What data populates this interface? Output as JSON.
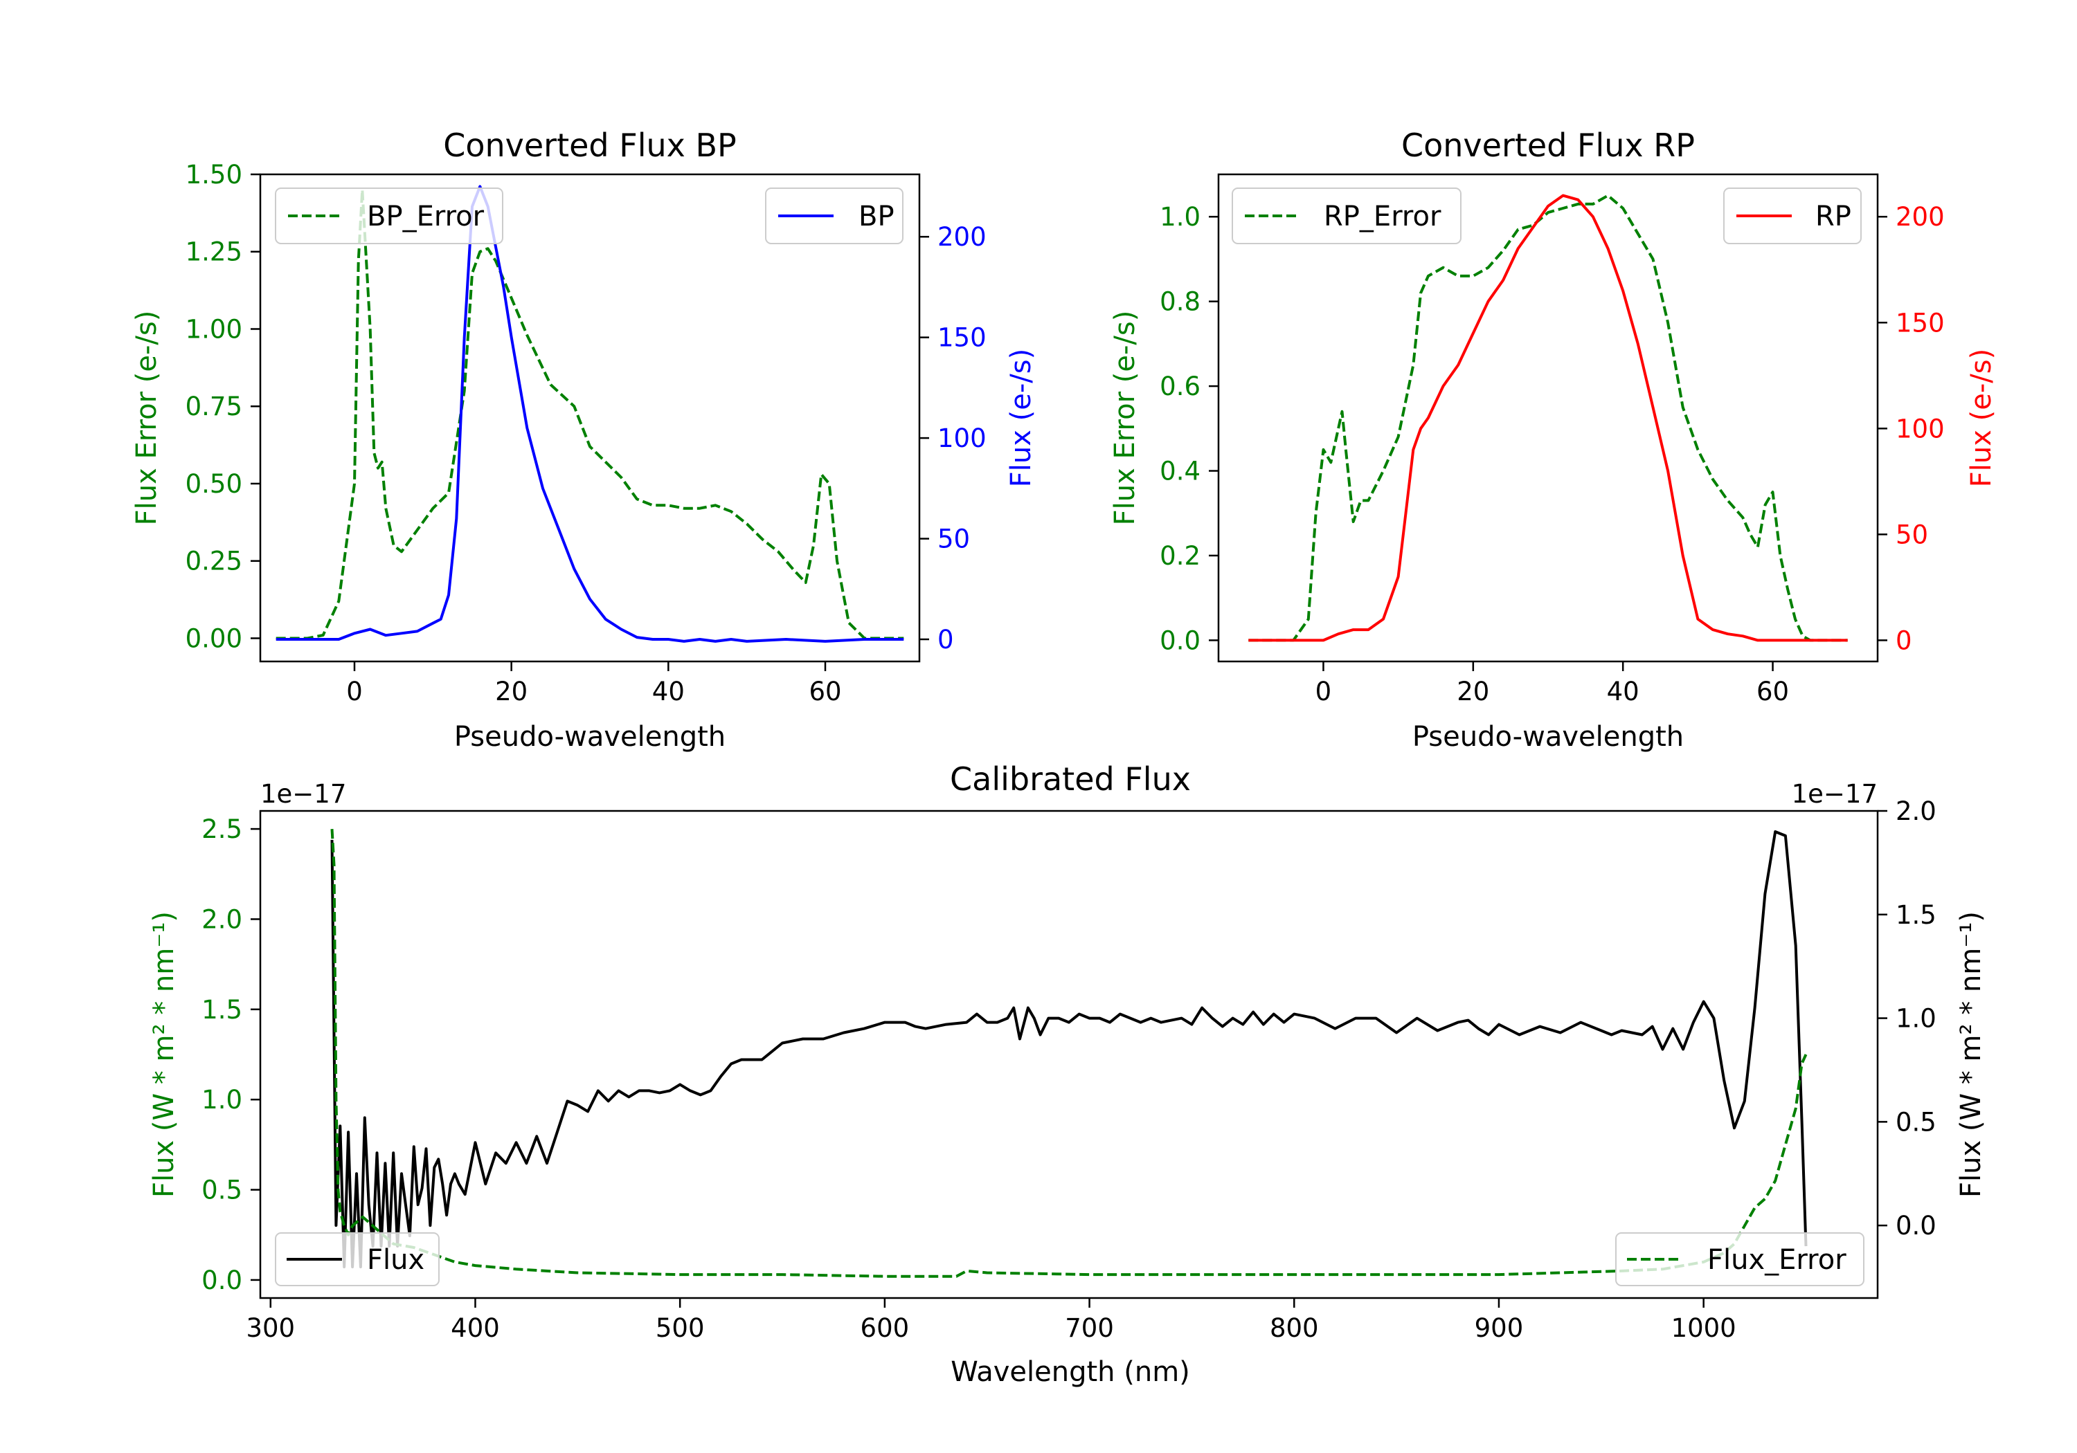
{
  "colors": {
    "green": "#008000",
    "blue": "#0000ff",
    "red": "#ff0000",
    "black": "#000000"
  },
  "chart_data": [
    {
      "type": "line",
      "title": "Converted Flux BP",
      "xlabel": "Pseudo-wavelength",
      "ylabel_left": "Flux Error (e-/s)",
      "ylabel_right": "Flux (e-/s)",
      "xlim": [
        -12,
        72
      ],
      "ylim_left": [
        -0.075,
        1.5
      ],
      "ylim_right": [
        -11,
        231
      ],
      "xticks": [
        0,
        20,
        40,
        60
      ],
      "yticks_left": [
        "0.00",
        "0.25",
        "0.50",
        "0.75",
        "1.00",
        "1.25",
        "1.50"
      ],
      "yticks_right": [
        "0",
        "50",
        "100",
        "150",
        "200"
      ],
      "legend_left": {
        "label": "BP_Error",
        "placement": "upper left"
      },
      "legend_right": {
        "label": "BP",
        "placement": "upper right"
      },
      "series": [
        {
          "name": "BP_Error",
          "axis": "left",
          "color": "green",
          "style": "dashed",
          "x": [
            -10,
            -6,
            -4,
            -2,
            0,
            0.5,
            1,
            2,
            2.5,
            3,
            3.5,
            4,
            5,
            6,
            8,
            10,
            12,
            14,
            15,
            16,
            17,
            18,
            20,
            22,
            25,
            28,
            30,
            32,
            34,
            36,
            38,
            40,
            42,
            44,
            46,
            48,
            50,
            52,
            54,
            56,
            57.5,
            58.5,
            59.5,
            60.5,
            61.5,
            63,
            65,
            67,
            70
          ],
          "y": [
            0,
            0,
            0.01,
            0.12,
            0.5,
            1.22,
            1.45,
            1.0,
            0.6,
            0.55,
            0.57,
            0.42,
            0.3,
            0.28,
            0.35,
            0.42,
            0.47,
            0.8,
            1.18,
            1.25,
            1.26,
            1.22,
            1.1,
            0.98,
            0.82,
            0.75,
            0.62,
            0.57,
            0.52,
            0.45,
            0.43,
            0.43,
            0.42,
            0.42,
            0.43,
            0.41,
            0.37,
            0.32,
            0.28,
            0.22,
            0.18,
            0.3,
            0.53,
            0.5,
            0.25,
            0.05,
            0,
            0,
            0
          ]
        },
        {
          "name": "BP",
          "axis": "right",
          "color": "blue",
          "style": "solid",
          "x": [
            -10,
            -5,
            -2,
            0,
            2,
            4,
            6,
            8,
            10,
            11,
            12,
            13,
            14,
            15,
            16,
            17,
            18,
            19,
            20,
            22,
            24,
            26,
            28,
            30,
            32,
            34,
            36,
            38,
            40,
            42,
            44,
            46,
            48,
            50,
            55,
            60,
            65,
            70
          ],
          "y": [
            0,
            0,
            0,
            3,
            5,
            2,
            3,
            4,
            8,
            10,
            22,
            60,
            150,
            215,
            225,
            215,
            195,
            175,
            150,
            105,
            75,
            55,
            35,
            20,
            10,
            5,
            1,
            0,
            0,
            -1,
            0,
            -1,
            0,
            -1,
            0,
            -1,
            0,
            0
          ]
        },
        {
          "name": "",
          "axis": "right",
          "color": "blue",
          "style": "none",
          "x": [],
          "y": []
        }
      ]
    },
    {
      "type": "line",
      "title": "Converted Flux RP",
      "xlabel": "Pseudo-wavelength",
      "ylabel_left": "Flux Error (e-/s)",
      "ylabel_right": "Flux (e-/s)",
      "xlim": [
        -14,
        74
      ],
      "ylim_left": [
        -0.05,
        1.1
      ],
      "ylim_right": [
        -10,
        220
      ],
      "xticks": [
        0,
        20,
        40,
        60
      ],
      "yticks_left": [
        "0.0",
        "0.2",
        "0.4",
        "0.6",
        "0.8",
        "1.0"
      ],
      "yticks_right": [
        "0",
        "50",
        "100",
        "150",
        "200"
      ],
      "legend_left": {
        "label": "RP_Error",
        "placement": "upper left"
      },
      "legend_right": {
        "label": "RP",
        "placement": "upper right"
      },
      "series": [
        {
          "name": "RP_Error",
          "axis": "left",
          "color": "green",
          "style": "dashed",
          "x": [
            -10,
            -4,
            -2,
            -1,
            0,
            1,
            2,
            2.5,
            3,
            4,
            5,
            6,
            8,
            10,
            12,
            13,
            14,
            16,
            18,
            20,
            22,
            24,
            26,
            28,
            30,
            32,
            34,
            36,
            38,
            40,
            42,
            44,
            46,
            48,
            50,
            52,
            54,
            56,
            57,
            58,
            59,
            60,
            61,
            62,
            63,
            64,
            65,
            67,
            70
          ],
          "y": [
            0,
            0,
            0.05,
            0.3,
            0.45,
            0.42,
            0.5,
            0.54,
            0.45,
            0.28,
            0.33,
            0.33,
            0.4,
            0.48,
            0.65,
            0.82,
            0.86,
            0.88,
            0.86,
            0.86,
            0.88,
            0.92,
            0.97,
            0.98,
            1.01,
            1.02,
            1.03,
            1.03,
            1.05,
            1.02,
            0.96,
            0.9,
            0.75,
            0.55,
            0.45,
            0.38,
            0.33,
            0.29,
            0.25,
            0.22,
            0.32,
            0.35,
            0.2,
            0.12,
            0.05,
            0.01,
            0,
            0,
            0
          ]
        },
        {
          "name": "RP",
          "axis": "right",
          "color": "red",
          "style": "solid",
          "x": [
            -10,
            -4,
            0,
            2,
            4,
            6,
            8,
            10,
            11,
            12,
            13,
            14,
            16,
            18,
            20,
            22,
            24,
            26,
            28,
            30,
            32,
            34,
            36,
            38,
            40,
            42,
            44,
            46,
            48,
            50,
            52,
            54,
            56,
            58,
            60,
            62,
            64,
            66,
            70
          ],
          "y": [
            0,
            0,
            0,
            3,
            5,
            5,
            10,
            30,
            60,
            90,
            100,
            105,
            120,
            130,
            145,
            160,
            170,
            185,
            195,
            205,
            210,
            208,
            200,
            185,
            165,
            140,
            110,
            80,
            40,
            10,
            5,
            3,
            2,
            0,
            0,
            0,
            0,
            0,
            0
          ]
        }
      ]
    },
    {
      "type": "line",
      "title": "Calibrated Flux",
      "xlabel": "Wavelength (nm)",
      "ylabel_left": "Flux (W * m² * nm⁻¹)",
      "ylabel_right": "Flux (W * m² * nm⁻¹)",
      "xlim": [
        295,
        1085
      ],
      "ylim_left": [
        -0.1,
        2.6
      ],
      "ylim_right": [
        -0.35,
        2.0
      ],
      "offset_left": "1e−17",
      "offset_right": "1e−17",
      "xticks": [
        300,
        400,
        500,
        600,
        700,
        800,
        900,
        1000
      ],
      "yticks_left": [
        "0.0",
        "0.5",
        "1.0",
        "1.5",
        "2.0",
        "2.5"
      ],
      "yticks_right": [
        "0.0",
        "0.5",
        "1.0",
        "1.5",
        "2.0"
      ],
      "legend_left": {
        "label": "Flux",
        "placement": "lower left"
      },
      "legend_right": {
        "label": "Flux_Error",
        "placement": "lower right"
      },
      "series": [
        {
          "name": "Flux",
          "axis": "right",
          "color": "black",
          "style": "solid",
          "x": [
            330,
            332,
            334,
            336,
            338,
            340,
            342,
            344,
            346,
            348,
            350,
            352,
            354,
            356,
            358,
            360,
            362,
            364,
            366,
            368,
            370,
            372,
            374,
            376,
            378,
            380,
            382,
            384,
            386,
            388,
            390,
            392,
            395,
            400,
            405,
            410,
            415,
            420,
            425,
            430,
            435,
            440,
            445,
            450,
            455,
            460,
            465,
            470,
            475,
            480,
            485,
            490,
            495,
            500,
            505,
            510,
            515,
            520,
            525,
            530,
            540,
            550,
            560,
            570,
            580,
            590,
            600,
            610,
            615,
            620,
            630,
            640,
            645,
            650,
            655,
            660,
            663,
            666,
            670,
            673,
            676,
            680,
            685,
            690,
            695,
            700,
            705,
            710,
            715,
            720,
            725,
            730,
            735,
            740,
            745,
            750,
            755,
            760,
            765,
            770,
            775,
            780,
            785,
            790,
            795,
            800,
            810,
            820,
            830,
            840,
            850,
            860,
            870,
            880,
            885,
            890,
            895,
            900,
            910,
            920,
            930,
            940,
            950,
            955,
            960,
            965,
            970,
            975,
            980,
            985,
            990,
            995,
            1000,
            1005,
            1010,
            1015,
            1020,
            1025,
            1030,
            1035,
            1040,
            1045,
            1048,
            1050
          ],
          "y": [
            1.86,
            0,
            0.48,
            -0.2,
            0.45,
            -0.2,
            0.25,
            -0.2,
            0.52,
            0.1,
            -0.1,
            0.35,
            -0.1,
            0.3,
            -0.1,
            0.35,
            -0.1,
            0.25,
            0.1,
            -0.05,
            0.38,
            0.1,
            0.18,
            0.37,
            0,
            0.28,
            0.32,
            0.2,
            0.05,
            0.2,
            0.25,
            0.2,
            0.15,
            0.4,
            0.2,
            0.35,
            0.3,
            0.4,
            0.3,
            0.43,
            0.3,
            0.45,
            0.6,
            0.58,
            0.55,
            0.65,
            0.6,
            0.65,
            0.62,
            0.65,
            0.65,
            0.64,
            0.65,
            0.68,
            0.65,
            0.63,
            0.65,
            0.72,
            0.78,
            0.8,
            0.8,
            0.88,
            0.9,
            0.9,
            0.93,
            0.95,
            0.98,
            0.98,
            0.96,
            0.95,
            0.97,
            0.98,
            1.02,
            0.98,
            0.98,
            1.0,
            1.05,
            0.9,
            1.05,
            1.0,
            0.92,
            1.0,
            1.0,
            0.98,
            1.02,
            1.0,
            1.0,
            0.98,
            1.02,
            1.0,
            0.98,
            1.0,
            0.98,
            0.99,
            1.0,
            0.97,
            1.05,
            1.0,
            0.96,
            1.0,
            0.97,
            1.03,
            0.97,
            1.02,
            0.98,
            1.02,
            1.0,
            0.95,
            1.0,
            1.0,
            0.93,
            1.0,
            0.94,
            0.98,
            0.99,
            0.95,
            0.92,
            0.97,
            0.92,
            0.96,
            0.93,
            0.98,
            0.94,
            0.92,
            0.94,
            0.93,
            0.92,
            0.96,
            0.85,
            0.95,
            0.85,
            0.98,
            1.08,
            1.0,
            0.7,
            0.47,
            0.6,
            1.05,
            1.6,
            1.9,
            1.88,
            1.35,
            0.5,
            -0.1
          ]
        },
        {
          "name": "Flux_Error",
          "axis": "left",
          "color": "green",
          "style": "dashed",
          "x": [
            330,
            331,
            332,
            333,
            334,
            336,
            338,
            340,
            345,
            350,
            360,
            370,
            380,
            390,
            400,
            420,
            450,
            500,
            550,
            600,
            630,
            635,
            640,
            650,
            700,
            800,
            900,
            960,
            980,
            1000,
            1010,
            1015,
            1020,
            1025,
            1030,
            1035,
            1040,
            1045,
            1048,
            1050
          ],
          "y": [
            2.5,
            2.3,
            1.0,
            0.5,
            0.38,
            0.3,
            0.25,
            0.3,
            0.35,
            0.3,
            0.2,
            0.18,
            0.14,
            0.1,
            0.08,
            0.06,
            0.04,
            0.03,
            0.03,
            0.02,
            0.02,
            0.02,
            0.05,
            0.04,
            0.03,
            0.03,
            0.03,
            0.05,
            0.06,
            0.1,
            0.15,
            0.2,
            0.3,
            0.4,
            0.45,
            0.55,
            0.75,
            0.95,
            1.2,
            1.25
          ]
        }
      ]
    }
  ]
}
